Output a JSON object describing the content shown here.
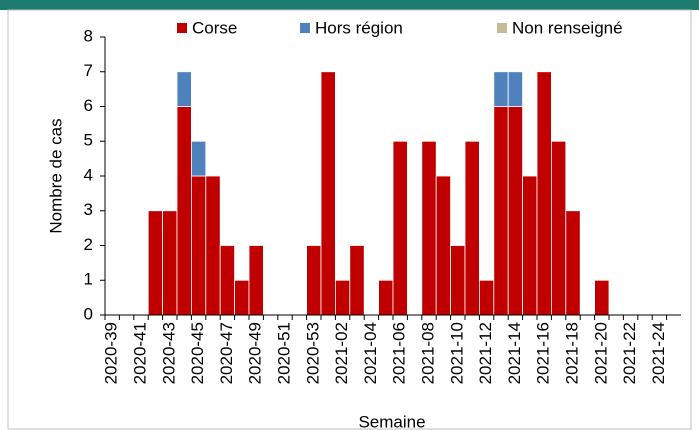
{
  "chart_data": {
    "type": "stacked_bar",
    "categories": [
      "2020-39",
      null,
      "2020-41",
      null,
      "2020-43",
      null,
      "2020-45",
      null,
      "2020-47",
      null,
      "2020-49",
      null,
      "2020-51",
      null,
      "2020-53",
      null,
      "2021-02",
      null,
      "2021-04",
      null,
      "2021-06",
      null,
      "2021-08",
      null,
      "2021-10",
      null,
      "2021-12",
      null,
      "2021-14",
      null,
      "2021-16",
      null,
      "2021-18",
      null,
      "2021-20",
      null,
      "2021-22",
      null,
      "2021-24",
      null
    ],
    "series": [
      {
        "name": "Corse",
        "color": "#c00000",
        "values": [
          0,
          0,
          0,
          3,
          3,
          6,
          4,
          4,
          2,
          1,
          2,
          0,
          0,
          0,
          2,
          7,
          1,
          2,
          0,
          1,
          5,
          0,
          5,
          4,
          2,
          5,
          1,
          6,
          6,
          4,
          7,
          5,
          3,
          0,
          1,
          0,
          0,
          0,
          0,
          0
        ]
      },
      {
        "name": "Hors région",
        "color": "#4f81bd",
        "values": [
          0,
          0,
          0,
          0,
          0,
          1,
          1,
          0,
          0,
          0,
          0,
          0,
          0,
          0,
          0,
          0,
          0,
          0,
          0,
          0,
          0,
          0,
          0,
          0,
          0,
          0,
          0,
          1,
          1,
          0,
          0,
          0,
          0,
          0,
          0,
          0,
          0,
          0,
          0,
          0
        ]
      },
      {
        "name": "Non renseigné",
        "color": "#c4bc96",
        "values": [
          0,
          0,
          0,
          0,
          0,
          0,
          0,
          0,
          0,
          0,
          0,
          0,
          0,
          0,
          0,
          0,
          0,
          0,
          0,
          0,
          0,
          0,
          0,
          0,
          0,
          0,
          0,
          0,
          0,
          0,
          0,
          0,
          0,
          0,
          0,
          0,
          0,
          0,
          0,
          0
        ]
      }
    ],
    "ylabel": "Nombre de cas",
    "xlabel": "Semaine",
    "ylim": [
      0,
      8
    ],
    "yticks": [
      0,
      1,
      2,
      3,
      4,
      5,
      6,
      7,
      8
    ]
  }
}
